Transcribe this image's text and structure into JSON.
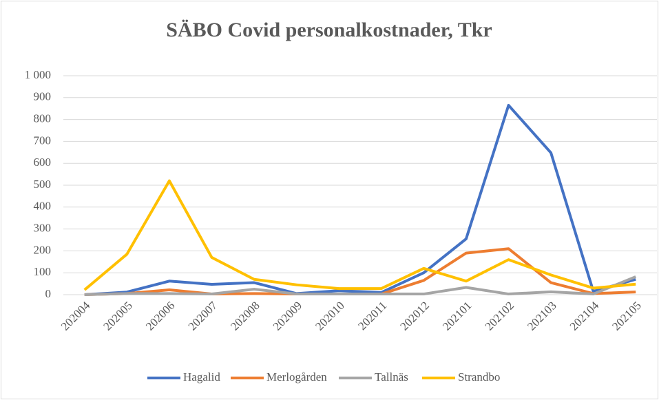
{
  "chart_data": {
    "type": "line",
    "title": "SÄBO Covid personalkostnader, Tkr",
    "categories": [
      "202004",
      "202005",
      "202006",
      "202007",
      "202008",
      "202009",
      "202010",
      "202011",
      "202012",
      "202101",
      "202102",
      "202103",
      "202104",
      "202105"
    ],
    "series": [
      {
        "name": "Hagalid",
        "color": "#4472c4",
        "values": [
          0,
          12,
          62,
          47,
          55,
          5,
          18,
          10,
          100,
          255,
          865,
          648,
          15,
          70
        ]
      },
      {
        "name": "Merlogården",
        "color": "#ed7d31",
        "values": [
          0,
          5,
          22,
          3,
          5,
          3,
          3,
          3,
          65,
          190,
          210,
          55,
          5,
          12
        ]
      },
      {
        "name": "Tallnäs",
        "color": "#a5a5a5",
        "values": [
          0,
          5,
          5,
          3,
          25,
          3,
          3,
          3,
          3,
          33,
          3,
          13,
          3,
          82
        ]
      },
      {
        "name": "Strandbo",
        "color": "#ffc000",
        "values": [
          22,
          185,
          520,
          170,
          70,
          45,
          28,
          28,
          120,
          62,
          160,
          90,
          30,
          48
        ]
      }
    ],
    "ylim": [
      0,
      1000
    ],
    "yticks": [
      0,
      100,
      200,
      300,
      400,
      500,
      600,
      700,
      800,
      900,
      {
        "value": 1000,
        "label": "1 000"
      }
    ],
    "grid": true,
    "legend": "bottom"
  }
}
